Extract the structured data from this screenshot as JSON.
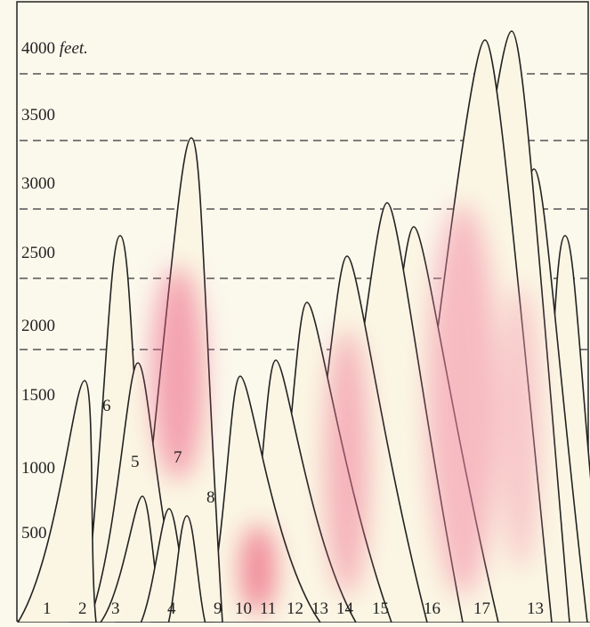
{
  "axis": {
    "ticks": [
      {
        "label": "4000",
        "unit": "feet."
      },
      {
        "label": "3500"
      },
      {
        "label": "3000"
      },
      {
        "label": "2500"
      },
      {
        "label": "2000"
      },
      {
        "label": "1500"
      },
      {
        "label": "1000"
      },
      {
        "label": "500"
      }
    ]
  },
  "upper_labels": [
    "6",
    "5",
    "7",
    "8"
  ],
  "base_labels": [
    "1",
    "2",
    "3",
    "4",
    "9",
    "10",
    "11",
    "12",
    "13",
    "14",
    "15",
    "16",
    "17",
    "13"
  ]
}
